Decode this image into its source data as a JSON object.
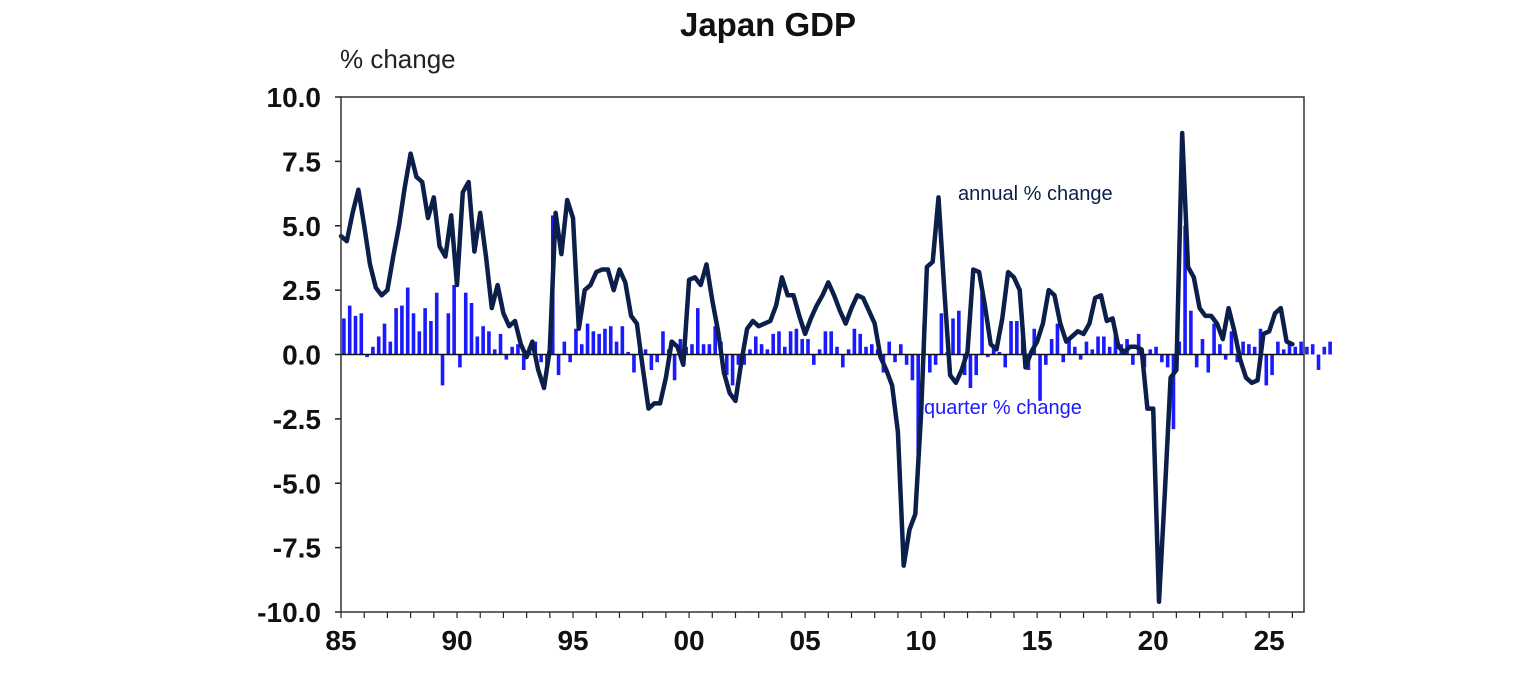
{
  "chart_data": {
    "type": "bar+line",
    "title": "Japan GDP",
    "ylabel": "% change",
    "ylim": [
      -10.0,
      10.0
    ],
    "yticks": [
      "10.0",
      "7.5",
      "5.0",
      "2.5",
      "0.0",
      "-2.5",
      "-5.0",
      "-7.5",
      "-10.0"
    ],
    "xlim": [
      1985,
      2026.5
    ],
    "xticks": [
      {
        "label": "85",
        "year": 1985
      },
      {
        "label": "90",
        "year": 1990
      },
      {
        "label": "95",
        "year": 1995
      },
      {
        "label": "00",
        "year": 2000
      },
      {
        "label": "05",
        "year": 2005
      },
      {
        "label": "10",
        "year": 2010
      },
      {
        "label": "15",
        "year": 2015
      },
      {
        "label": "20",
        "year": 2020
      },
      {
        "label": "25",
        "year": 2025
      }
    ],
    "grid": false,
    "colors": {
      "quarter": "#1a1aff",
      "annual": "#0c1f4a"
    },
    "series": [
      {
        "name": "quarter % change",
        "kind": "bar",
        "start": 1985.0,
        "step": 0.25,
        "values": [
          1.4,
          1.9,
          1.5,
          1.6,
          -0.1,
          0.3,
          0.7,
          1.2,
          0.5,
          1.8,
          1.9,
          2.6,
          1.6,
          0.9,
          1.8,
          1.3,
          2.4,
          -1.2,
          1.6,
          2.7,
          -0.5,
          2.4,
          2.0,
          0.7,
          1.1,
          0.9,
          0.2,
          0.8,
          -0.2,
          0.3,
          0.4,
          -0.6,
          0.3,
          0.5,
          -0.3,
          -0.4,
          5.4,
          -0.8,
          0.5,
          -0.3,
          1.0,
          0.4,
          1.2,
          0.9,
          0.8,
          1.0,
          1.1,
          0.5,
          1.1,
          0.1,
          -0.7,
          0.4,
          0.2,
          -0.6,
          -0.3,
          0.9,
          0.2,
          -1.0,
          0.6,
          0.3,
          0.4,
          1.8,
          0.4,
          0.4,
          1.1,
          0.5,
          -0.8,
          -1.2,
          -0.4,
          -0.4,
          0.2,
          0.7,
          0.4,
          0.2,
          0.8,
          0.9,
          0.3,
          0.9,
          1.0,
          0.6,
          0.6,
          -0.4,
          0.2,
          0.9,
          0.9,
          0.3,
          -0.5,
          0.2,
          1.0,
          0.8,
          0.3,
          0.4,
          0.2,
          -0.7,
          0.5,
          -0.3,
          0.4,
          -0.4,
          -1.0,
          -4.4,
          1.1,
          -0.7,
          -0.4,
          1.6,
          0.1,
          1.4,
          1.7,
          -0.8,
          -1.3,
          -0.8,
          2.4,
          -0.1,
          0.3,
          0.1,
          -0.5,
          1.3,
          1.3,
          1.0,
          -0.6,
          1.0,
          -1.8,
          -0.4,
          0.6,
          1.2,
          -0.3,
          0.6,
          0.3,
          -0.2,
          0.5,
          0.2,
          0.7,
          0.7,
          0.3,
          1.0,
          0.4,
          0.6,
          -0.4,
          0.8,
          -0.5,
          0.2,
          0.3,
          -0.3,
          -0.5,
          -2.9,
          0.5,
          5.0,
          1.7,
          -0.5,
          0.6,
          -0.7,
          1.2,
          0.4,
          -0.2,
          0.9,
          -0.3,
          0.5,
          0.4,
          0.3,
          1.0,
          -1.2,
          -0.8,
          0.5,
          0.2,
          0.5,
          0.3,
          0.5,
          0.3,
          0.4,
          -0.6,
          0.3,
          0.5
        ]
      },
      {
        "name": "annual % change",
        "kind": "line",
        "points": [
          [
            1985.0,
            4.6
          ],
          [
            1985.25,
            4.4
          ],
          [
            1985.5,
            5.5
          ],
          [
            1985.75,
            6.4
          ],
          [
            1986.0,
            5.0
          ],
          [
            1986.25,
            3.5
          ],
          [
            1986.5,
            2.6
          ],
          [
            1986.75,
            2.3
          ],
          [
            1987.0,
            2.5
          ],
          [
            1987.25,
            3.8
          ],
          [
            1987.5,
            5.0
          ],
          [
            1987.75,
            6.5
          ],
          [
            1988.0,
            7.8
          ],
          [
            1988.25,
            6.9
          ],
          [
            1988.5,
            6.7
          ],
          [
            1988.75,
            5.3
          ],
          [
            1989.0,
            6.1
          ],
          [
            1989.25,
            4.2
          ],
          [
            1989.5,
            3.8
          ],
          [
            1989.75,
            5.4
          ],
          [
            1990.0,
            2.7
          ],
          [
            1990.25,
            6.3
          ],
          [
            1990.5,
            6.7
          ],
          [
            1990.75,
            4.0
          ],
          [
            1991.0,
            5.5
          ],
          [
            1991.25,
            3.8
          ],
          [
            1991.5,
            1.8
          ],
          [
            1991.75,
            2.7
          ],
          [
            1992.0,
            1.6
          ],
          [
            1992.25,
            1.1
          ],
          [
            1992.5,
            1.3
          ],
          [
            1992.75,
            0.4
          ],
          [
            1993.0,
            -0.1
          ],
          [
            1993.25,
            0.5
          ],
          [
            1993.5,
            -0.6
          ],
          [
            1993.75,
            -1.3
          ],
          [
            1994.0,
            0.2
          ],
          [
            1994.25,
            5.5
          ],
          [
            1994.5,
            3.9
          ],
          [
            1994.75,
            6.0
          ],
          [
            1995.0,
            5.3
          ],
          [
            1995.25,
            1.0
          ],
          [
            1995.5,
            2.5
          ],
          [
            1995.75,
            2.7
          ],
          [
            1996.0,
            3.2
          ],
          [
            1996.25,
            3.3
          ],
          [
            1996.5,
            3.3
          ],
          [
            1996.75,
            2.5
          ],
          [
            1997.0,
            3.3
          ],
          [
            1997.25,
            2.8
          ],
          [
            1997.5,
            1.5
          ],
          [
            1997.75,
            1.2
          ],
          [
            1998.0,
            -0.5
          ],
          [
            1998.25,
            -2.1
          ],
          [
            1998.5,
            -1.9
          ],
          [
            1998.75,
            -1.9
          ],
          [
            1999.0,
            -0.9
          ],
          [
            1999.25,
            0.5
          ],
          [
            1999.5,
            0.3
          ],
          [
            1999.75,
            -0.4
          ],
          [
            2000.0,
            2.9
          ],
          [
            2000.25,
            3.0
          ],
          [
            2000.5,
            2.7
          ],
          [
            2000.75,
            3.5
          ],
          [
            2001.0,
            2.1
          ],
          [
            2001.25,
            0.9
          ],
          [
            2001.5,
            -0.7
          ],
          [
            2001.75,
            -1.5
          ],
          [
            2002.0,
            -1.8
          ],
          [
            2002.25,
            -0.3
          ],
          [
            2002.5,
            1.0
          ],
          [
            2002.75,
            1.3
          ],
          [
            2003.0,
            1.1
          ],
          [
            2003.25,
            1.2
          ],
          [
            2003.5,
            1.3
          ],
          [
            2003.75,
            1.9
          ],
          [
            2004.0,
            3.0
          ],
          [
            2004.25,
            2.3
          ],
          [
            2004.5,
            2.3
          ],
          [
            2004.75,
            1.5
          ],
          [
            2005.0,
            0.8
          ],
          [
            2005.25,
            1.4
          ],
          [
            2005.5,
            1.9
          ],
          [
            2005.75,
            2.3
          ],
          [
            2006.0,
            2.8
          ],
          [
            2006.25,
            2.3
          ],
          [
            2006.5,
            1.7
          ],
          [
            2006.75,
            1.2
          ],
          [
            2007.0,
            1.8
          ],
          [
            2007.25,
            2.3
          ],
          [
            2007.5,
            2.2
          ],
          [
            2007.75,
            1.7
          ],
          [
            2008.0,
            1.2
          ],
          [
            2008.25,
            -0.1
          ],
          [
            2008.5,
            -0.6
          ],
          [
            2008.75,
            -1.2
          ],
          [
            2009.0,
            -3.0
          ],
          [
            2009.25,
            -8.2
          ],
          [
            2009.5,
            -6.8
          ],
          [
            2009.75,
            -6.2
          ],
          [
            2010.0,
            -2.3
          ],
          [
            2010.25,
            3.4
          ],
          [
            2010.5,
            3.6
          ],
          [
            2010.75,
            6.1
          ],
          [
            2011.0,
            2.5
          ],
          [
            2011.25,
            -0.8
          ],
          [
            2011.5,
            -1.1
          ],
          [
            2011.75,
            -0.6
          ],
          [
            2012.0,
            0.1
          ],
          [
            2012.25,
            3.3
          ],
          [
            2012.5,
            3.2
          ],
          [
            2012.75,
            1.9
          ],
          [
            2013.0,
            0.4
          ],
          [
            2013.25,
            0.2
          ],
          [
            2013.5,
            1.4
          ],
          [
            2013.75,
            3.2
          ],
          [
            2014.0,
            3.0
          ],
          [
            2014.25,
            2.5
          ],
          [
            2014.5,
            -0.5
          ],
          [
            2014.75,
            0.1
          ],
          [
            2015.0,
            0.5
          ],
          [
            2015.25,
            1.2
          ],
          [
            2015.5,
            2.5
          ],
          [
            2015.75,
            2.3
          ],
          [
            2016.0,
            1.2
          ],
          [
            2016.25,
            0.5
          ],
          [
            2016.5,
            0.7
          ],
          [
            2016.75,
            0.9
          ],
          [
            2017.0,
            0.8
          ],
          [
            2017.25,
            1.2
          ],
          [
            2017.5,
            2.2
          ],
          [
            2017.75,
            2.3
          ],
          [
            2018.0,
            1.3
          ],
          [
            2018.25,
            1.4
          ],
          [
            2018.5,
            0.3
          ],
          [
            2018.75,
            0.1
          ],
          [
            2019.0,
            0.3
          ],
          [
            2019.25,
            0.3
          ],
          [
            2019.5,
            0.2
          ],
          [
            2019.75,
            -2.1
          ],
          [
            2020.0,
            -2.1
          ],
          [
            2020.25,
            -9.6
          ],
          [
            2020.5,
            -5.4
          ],
          [
            2020.75,
            -0.9
          ],
          [
            2021.0,
            -0.6
          ],
          [
            2021.25,
            8.6
          ],
          [
            2021.5,
            3.4
          ],
          [
            2021.75,
            3.0
          ],
          [
            2022.0,
            1.8
          ],
          [
            2022.25,
            1.5
          ],
          [
            2022.5,
            1.5
          ],
          [
            2022.75,
            1.2
          ],
          [
            2023.0,
            0.6
          ],
          [
            2023.25,
            1.8
          ],
          [
            2023.5,
            0.9
          ],
          [
            2023.75,
            -0.2
          ],
          [
            2024.0,
            -0.9
          ],
          [
            2024.25,
            -1.1
          ],
          [
            2024.5,
            -1.0
          ],
          [
            2024.75,
            0.8
          ],
          [
            2025.0,
            0.9
          ],
          [
            2025.25,
            1.6
          ],
          [
            2025.5,
            1.8
          ],
          [
            2025.75,
            0.5
          ],
          [
            2026.0,
            0.4
          ]
        ]
      }
    ],
    "annotations": [
      {
        "text": "annual % change",
        "series": "annual % change"
      },
      {
        "text": "quarter % change",
        "series": "quarter % change"
      }
    ]
  }
}
